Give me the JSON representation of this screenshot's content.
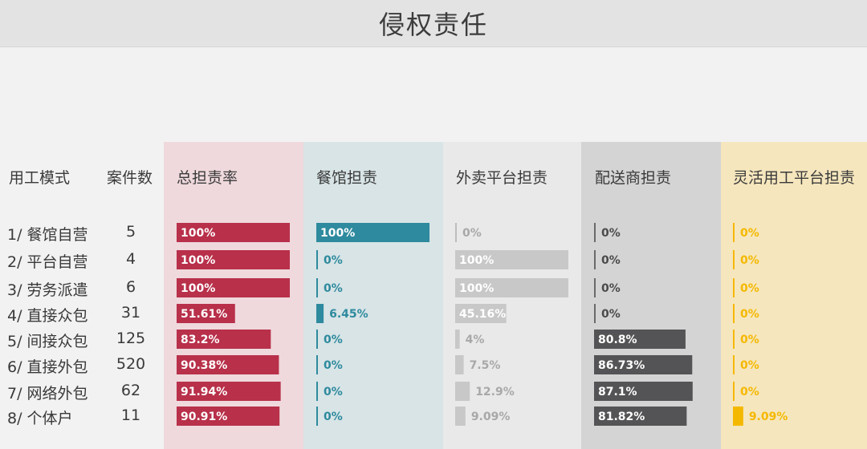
{
  "title": "侵权责任",
  "headers": {
    "mode": "用工模式",
    "cases": "案件数"
  },
  "colors": {
    "total": "#b8304a",
    "restaurant": "#2e8a9e",
    "platform": "#c8c8c8",
    "delivery": "#545456",
    "flex": "#f5b800",
    "total_bg": "#efd9dd",
    "restaurant_bg": "#d8e4e6",
    "platform_bg": "#e9e9e9",
    "delivery_bg": "#d4d4d4",
    "flex_bg": "#f5e6bd"
  },
  "rows": [
    {
      "label": "1/ 餐馆自营",
      "count": "5"
    },
    {
      "label": "2/ 平台自营",
      "count": "4"
    },
    {
      "label": "3/ 劳务派遣",
      "count": "6"
    },
    {
      "label": "4/ 直接众包",
      "count": "31"
    },
    {
      "label": "5/ 间接众包",
      "count": "125"
    },
    {
      "label": "6/ 直接外包",
      "count": "520"
    },
    {
      "label": "7/ 网络外包",
      "count": "62"
    },
    {
      "label": "8/ 个体户",
      "count": "11"
    }
  ],
  "chart_data": {
    "type": "bar",
    "orientation": "horizontal",
    "categories": [
      "1/ 餐馆自营",
      "2/ 平台自营",
      "3/ 劳务派遣",
      "4/ 直接众包",
      "5/ 间接众包",
      "6/ 直接外包",
      "7/ 网络外包",
      "8/ 个体户"
    ],
    "xlim": [
      0,
      100
    ],
    "series": [
      {
        "name": "总担责率",
        "values": [
          100,
          100,
          100,
          51.61,
          83.2,
          90.38,
          91.94,
          90.91
        ],
        "labels": [
          "100%",
          "100%",
          "100%",
          "51.61%",
          "83.2%",
          "90.38%",
          "91.94%",
          "90.91%"
        ]
      },
      {
        "name": "餐馆担责",
        "values": [
          100,
          0,
          0,
          6.45,
          0,
          0,
          0,
          0
        ],
        "labels": [
          "100%",
          "0%",
          "0%",
          "6.45%",
          "0%",
          "0%",
          "0%",
          "0%"
        ]
      },
      {
        "name": "外卖平台担责",
        "values": [
          0,
          100,
          100,
          45.16,
          4,
          7.5,
          12.9,
          9.09
        ],
        "labels": [
          "0%",
          "100%",
          "100%",
          "45.16%",
          "4%",
          "7.5%",
          "12.9%",
          "9.09%"
        ]
      },
      {
        "name": "配送商担责",
        "values": [
          0,
          0,
          0,
          0,
          80.8,
          86.73,
          87.1,
          81.82
        ],
        "labels": [
          "0%",
          "0%",
          "0%",
          "0%",
          "80.8%",
          "86.73%",
          "87.1%",
          "81.82%"
        ]
      },
      {
        "name": "灵活用工平台担责",
        "values": [
          0,
          0,
          0,
          0,
          0,
          0,
          0,
          9.09
        ],
        "labels": [
          "0%",
          "0%",
          "0%",
          "0%",
          "0%",
          "0%",
          "0%",
          "9.09%"
        ]
      }
    ]
  }
}
